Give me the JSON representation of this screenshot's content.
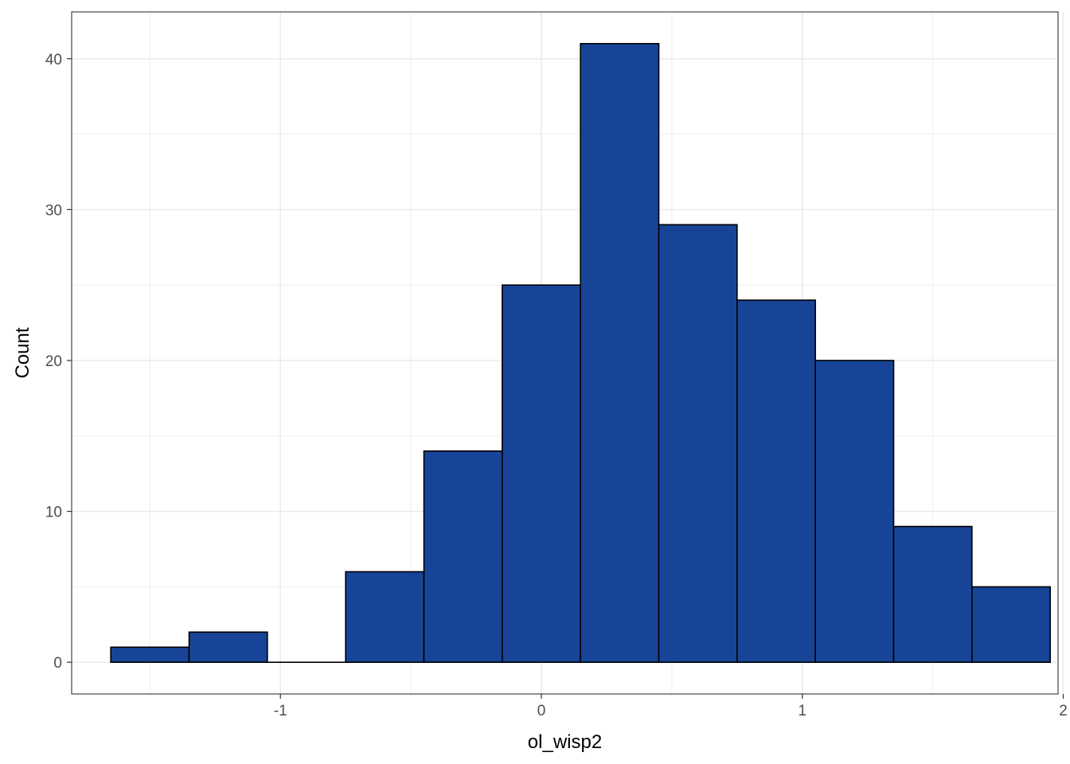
{
  "chart_data": {
    "type": "bar",
    "subtype": "histogram",
    "xlabel": "ol_wisp2",
    "ylabel": "Count",
    "xlim": [
      -1.8,
      1.98
    ],
    "ylim": [
      -2.1,
      43.1
    ],
    "x_ticks": [
      -1,
      0,
      1,
      2
    ],
    "x_tick_labels": [
      "-1",
      "0",
      "1",
      "2"
    ],
    "y_ticks": [
      0,
      10,
      20,
      30,
      40
    ],
    "y_tick_labels": [
      "0",
      "10",
      "20",
      "30",
      "40"
    ],
    "bins": [
      {
        "x0": -1.65,
        "x1": -1.35,
        "count": 1
      },
      {
        "x0": -1.35,
        "x1": -1.05,
        "count": 2
      },
      {
        "x0": -1.05,
        "x1": -0.75,
        "count": 0
      },
      {
        "x0": -0.75,
        "x1": -0.45,
        "count": 6
      },
      {
        "x0": -0.45,
        "x1": -0.15,
        "count": 14
      },
      {
        "x0": -0.15,
        "x1": 0.15,
        "count": 25
      },
      {
        "x0": 0.15,
        "x1": 0.45,
        "count": 41
      },
      {
        "x0": 0.45,
        "x1": 0.75,
        "count": 29
      },
      {
        "x0": 0.75,
        "x1": 1.05,
        "count": 24
      },
      {
        "x0": 1.05,
        "x1": 1.35,
        "count": 20
      },
      {
        "x0": 1.35,
        "x1": 1.65,
        "count": 9
      },
      {
        "x0": 1.65,
        "x1": 1.95,
        "count": 5
      }
    ],
    "grid": true,
    "colors": {
      "bar_fill": "#184498",
      "bar_stroke": "#000000",
      "grid": "#ebebeb",
      "panel_border": "#333333"
    }
  }
}
